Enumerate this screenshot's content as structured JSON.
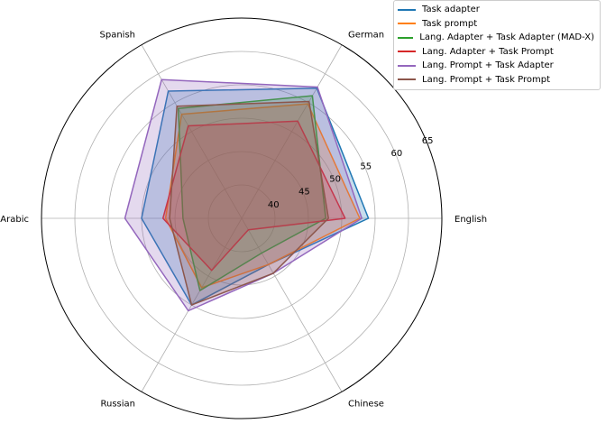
{
  "chart_data": {
    "type": "radar",
    "categories": [
      "English",
      "German",
      "Spanish",
      "Arabic",
      "Russian",
      "Chinese"
    ],
    "rlim": [
      35,
      65
    ],
    "rticks": [
      40,
      45,
      50,
      55,
      60,
      65
    ],
    "grid": true,
    "legend_position": "top-right",
    "series": [
      {
        "name": "Task adapter",
        "color": "#1f77b4",
        "values": [
          54.0,
          57.5,
          57.0,
          50.0,
          50.0,
          43.0
        ]
      },
      {
        "name": "Task prompt",
        "color": "#ff7f0e",
        "values": [
          52.7,
          54.8,
          53.0,
          46.4,
          47.0,
          43.0
        ]
      },
      {
        "name": "Lang. Adapter + Task Adapter (MAD-X)",
        "color": "#2ca02c",
        "values": [
          47.6,
          56.2,
          54.0,
          43.8,
          47.5,
          41.0
        ]
      },
      {
        "name": "Lang. Adapter + Task Prompt",
        "color": "#d62728",
        "values": [
          50.5,
          51.8,
          51.0,
          46.8,
          44.0,
          37.0
        ]
      },
      {
        "name": "Lang. Prompt + Task Adapter",
        "color": "#9467bd",
        "values": [
          53.0,
          57.7,
          59.0,
          52.5,
          51.0,
          44.5
        ]
      },
      {
        "name": "Lang. Prompt + Task Prompt",
        "color": "#8c564b",
        "values": [
          48.0,
          55.2,
          54.4,
          45.8,
          50.0,
          44.5
        ]
      }
    ]
  }
}
